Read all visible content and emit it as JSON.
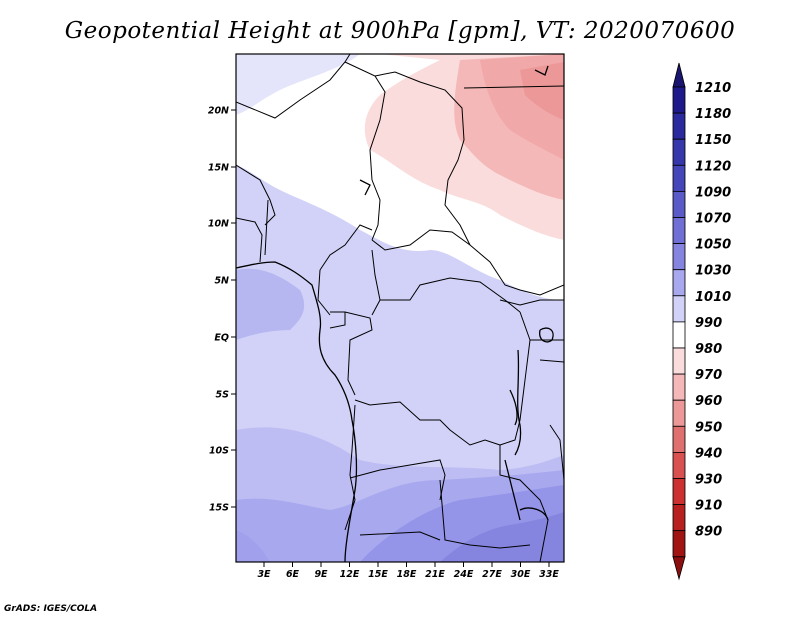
{
  "title": "Geopotential Height at 900hPa [gpm], VT: 2020070600",
  "credit": "GrADS: IGES/COLA",
  "map": {
    "lat_ticks": [
      "20N",
      "15N",
      "10N",
      "5N",
      "EQ",
      "5S",
      "10S",
      "15S"
    ],
    "lon_ticks": [
      "3E",
      "6E",
      "9E",
      "12E",
      "15E",
      "18E",
      "21E",
      "24E",
      "27E",
      "30E",
      "33E"
    ]
  },
  "colorbar": {
    "labels": [
      "1210",
      "1180",
      "1150",
      "1120",
      "1090",
      "1070",
      "1050",
      "1030",
      "1010",
      "990",
      "980",
      "970",
      "960",
      "950",
      "940",
      "930",
      "910",
      "890"
    ],
    "colors": [
      "#1e1a8c",
      "#2a2a9e",
      "#3737ac",
      "#4646bb",
      "#5a5ac8",
      "#6f6fd6",
      "#8585e0",
      "#a8a8ef",
      "#d2d2f8",
      "#ffffff",
      "#fadcdc",
      "#f5b8b8",
      "#ec9898",
      "#e07070",
      "#d85050",
      "#cc3030",
      "#b82020",
      "#a01414"
    ],
    "top_color": "#1a1670",
    "bottom_color": "#8c0f0f"
  }
}
